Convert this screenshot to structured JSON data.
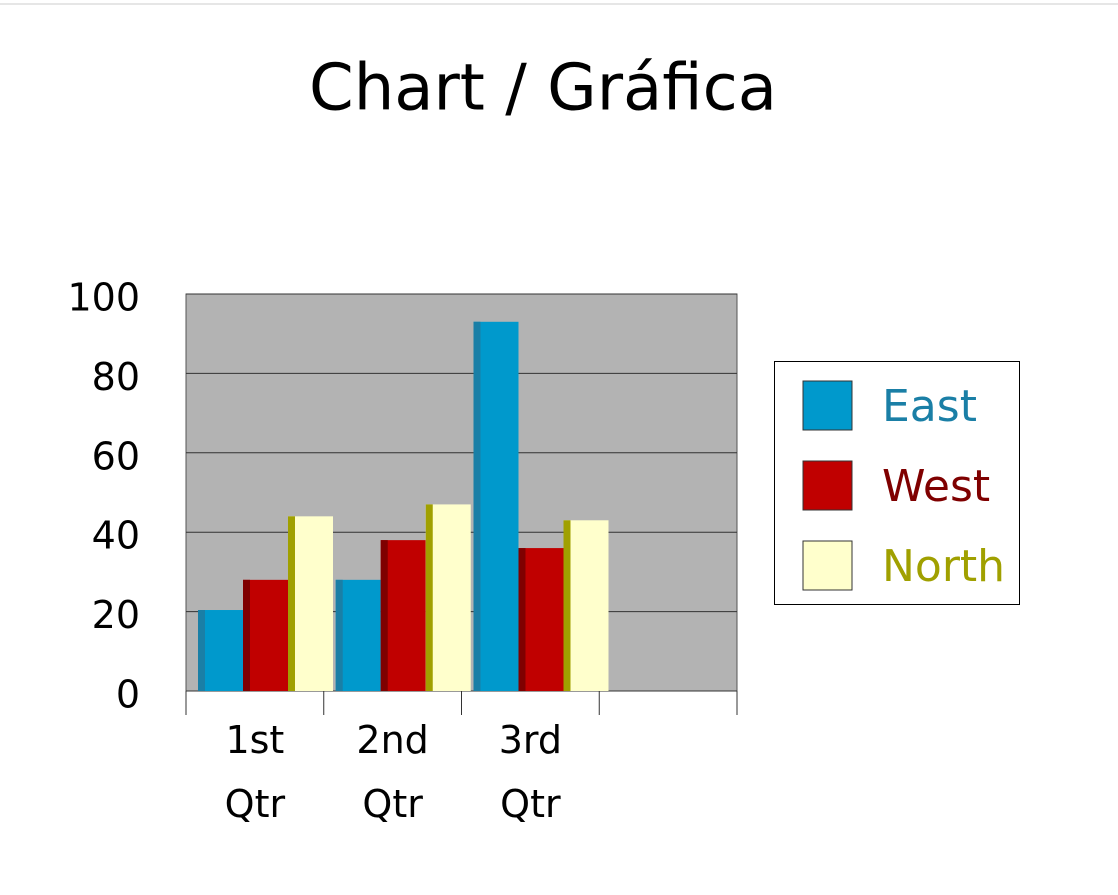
{
  "chart_data": {
    "type": "bar",
    "title": "Chart / Gráfica",
    "categories": [
      "1st Qtr",
      "2nd Qtr",
      "3rd Qtr",
      null
    ],
    "series": [
      {
        "name": "East",
        "color": "#0099cc",
        "edge_color": "#1a7fa6",
        "values": [
          20.4,
          28,
          93,
          null
        ]
      },
      {
        "name": "West",
        "color": "#c00000",
        "edge_color": "#7f0000",
        "values": [
          28,
          38,
          36,
          null
        ]
      },
      {
        "name": "North",
        "color": "#ffffcc",
        "edge_color": "#a0a000",
        "values": [
          44,
          47,
          43,
          null
        ]
      }
    ],
    "ylim": [
      0,
      100
    ],
    "yticks": [
      0,
      20,
      40,
      60,
      80,
      100
    ],
    "grid": true,
    "legend": "right",
    "plot_background": "#b3b3b3"
  }
}
